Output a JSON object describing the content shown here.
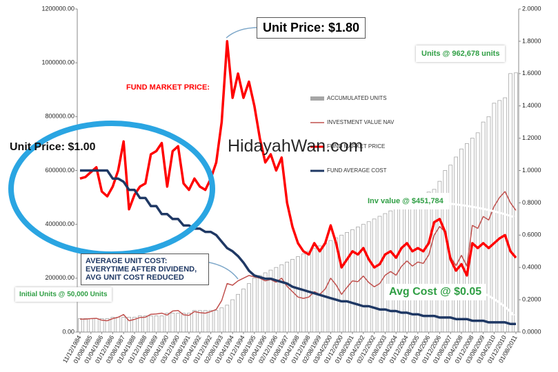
{
  "chart_data": {
    "type": "combo",
    "categories": [
      "11/12/1984",
      null,
      "01/08/1985",
      null,
      "01/04/1986",
      null,
      "01/12/1986",
      null,
      "03/08/1987",
      null,
      "01/04/1988",
      null,
      "01/12/1988",
      null,
      "01/08/1989",
      null,
      "02/04/1990",
      null,
      "03/12/1990",
      null,
      "01/08/1991",
      null,
      "01/04/1992",
      null,
      "01/12/1992",
      null,
      "02/08/1993",
      null,
      "01/04/1994",
      null,
      "01/12/1994",
      null,
      "01/08/1995",
      null,
      "01/04/1996",
      null,
      "02/12/1996",
      null,
      "01/08/1997",
      null,
      "01/04/1998",
      null,
      "01/12/1998",
      null,
      "02/08/1999",
      null,
      "03/04/2000",
      null,
      "01/12/2000",
      null,
      "01/08/2001",
      null,
      "01/04/2002",
      null,
      "02/12/2002",
      null,
      "01/08/2003",
      null,
      "01/04/2004",
      null,
      "01/12/2004",
      null,
      "01/08/2005",
      null,
      "01/04/2006",
      null,
      "01/12/2006",
      null,
      "01/08/2007",
      null,
      "01/04/2008",
      null,
      "01/12/2008",
      null,
      "03/08/2009",
      null,
      "01/04/2010",
      null,
      "01/12/2010",
      null,
      "01/08/2011"
    ],
    "series": [
      {
        "name": "ACCUMULATED UNITS",
        "type": "bar",
        "axis": "y",
        "color": "#a6a6a6",
        "values": [
          50000,
          50000,
          50000,
          50000,
          50000,
          50000,
          55000,
          55000,
          55000,
          55000,
          55000,
          60000,
          60000,
          60000,
          60000,
          60000,
          70000,
          70000,
          70000,
          70000,
          70000,
          80000,
          80000,
          80000,
          80000,
          80000,
          90000,
          100000,
          120000,
          140000,
          160000,
          180000,
          200000,
          210000,
          220000,
          230000,
          240000,
          250000,
          260000,
          270000,
          280000,
          290000,
          300000,
          310000,
          320000,
          330000,
          340000,
          350000,
          360000,
          370000,
          380000,
          390000,
          400000,
          410000,
          420000,
          430000,
          440000,
          450000,
          460000,
          470000,
          480000,
          490000,
          500000,
          510000,
          520000,
          530000,
          560000,
          600000,
          620000,
          650000,
          680000,
          700000,
          720000,
          740000,
          780000,
          800000,
          850000,
          860000,
          870000,
          960000,
          962678
        ]
      },
      {
        "name": "INVESTMENT VALUE NAV",
        "type": "line",
        "axis": "y",
        "color": "#c0504d",
        "values": [
          48000,
          48000,
          50000,
          51000,
          44000,
          42000,
          50000,
          55000,
          65000,
          42000,
          47000,
          54000,
          55000,
          66000,
          67000,
          70000,
          63000,
          78000,
          80000,
          64000,
          62000,
          76000,
          72000,
          70000,
          76000,
          84000,
          117000,
          180000,
          174000,
          190000,
          200000,
          210000,
          205000,
          200000,
          190000,
          195000,
          185000,
          200000,
          170000,
          150000,
          130000,
          125000,
          130000,
          150000,
          140000,
          160000,
          200000,
          175000,
          140000,
          166000,
          190000,
          187000,
          208000,
          184000,
          168000,
          180000,
          211000,
          225000,
          211000,
          244000,
          264000,
          245000,
          260000,
          255000,
          286000,
          360000,
          392000,
          372000,
          279000,
          247000,
          285000,
          245000,
          396000,
          385000,
          429000,
          416000,
          467000,
          500000,
          522000,
          480000,
          451784
        ]
      },
      {
        "name": "FUND MARKET PRICE",
        "type": "line",
        "axis": "y2",
        "color": "#ff0000",
        "values": [
          0.95,
          0.96,
          0.99,
          1.02,
          0.87,
          0.84,
          0.9,
          1.0,
          1.18,
          0.76,
          0.85,
          0.9,
          0.92,
          1.1,
          1.12,
          1.17,
          0.9,
          1.12,
          1.15,
          0.92,
          0.88,
          0.95,
          0.9,
          0.88,
          0.95,
          1.05,
          1.3,
          1.8,
          1.45,
          1.6,
          1.45,
          1.55,
          1.4,
          1.2,
          1.05,
          1.1,
          1.0,
          1.08,
          0.8,
          0.65,
          0.55,
          0.5,
          0.48,
          0.55,
          0.5,
          0.55,
          0.66,
          0.55,
          0.4,
          0.45,
          0.5,
          0.48,
          0.52,
          0.45,
          0.4,
          0.42,
          0.48,
          0.5,
          0.46,
          0.52,
          0.55,
          0.5,
          0.52,
          0.5,
          0.55,
          0.68,
          0.7,
          0.62,
          0.45,
          0.38,
          0.42,
          0.35,
          0.55,
          0.52,
          0.55,
          0.52,
          0.55,
          0.58,
          0.6,
          0.5,
          0.46
        ]
      },
      {
        "name": "FUND AVERAGE COST",
        "type": "line",
        "axis": "y2",
        "color": "#1f3864",
        "values": [
          1.0,
          1.0,
          1.0,
          1.0,
          1.0,
          1.0,
          0.95,
          0.95,
          0.93,
          0.88,
          0.88,
          0.83,
          0.83,
          0.78,
          0.78,
          0.73,
          0.73,
          0.7,
          0.7,
          0.66,
          0.66,
          0.64,
          0.64,
          0.62,
          0.62,
          0.6,
          0.56,
          0.52,
          0.5,
          0.47,
          0.43,
          0.38,
          0.35,
          0.34,
          0.33,
          0.33,
          0.32,
          0.31,
          0.3,
          0.28,
          0.27,
          0.26,
          0.25,
          0.24,
          0.23,
          0.22,
          0.21,
          0.2,
          0.19,
          0.19,
          0.18,
          0.17,
          0.16,
          0.16,
          0.15,
          0.14,
          0.14,
          0.13,
          0.13,
          0.12,
          0.12,
          0.11,
          0.11,
          0.1,
          0.1,
          0.1,
          0.09,
          0.09,
          0.09,
          0.08,
          0.08,
          0.08,
          0.07,
          0.07,
          0.07,
          0.06,
          0.06,
          0.06,
          0.06,
          0.05,
          0.05
        ]
      }
    ],
    "ylim": [
      0,
      1200000
    ],
    "yticks": [
      {
        "value": 0,
        "label": "0.00"
      },
      {
        "value": 200000,
        "label": "200000.00"
      },
      {
        "value": 400000,
        "label": "400000.00"
      },
      {
        "value": 600000,
        "label": "600000.00"
      },
      {
        "value": 800000,
        "label": "800000.00"
      },
      {
        "value": 1000000,
        "label": "1000000.00"
      },
      {
        "value": 1200000,
        "label": "1200000.00"
      }
    ],
    "y2lim": [
      0,
      2
    ],
    "y2ticks": [
      {
        "value": 0,
        "label": "0.0000"
      },
      {
        "value": 0.2,
        "label": "0.2000"
      },
      {
        "value": 0.4,
        "label": "0.4000"
      },
      {
        "value": 0.6,
        "label": "0.6000"
      },
      {
        "value": 0.8,
        "label": "0.8000"
      },
      {
        "value": 1,
        "label": "1.0000"
      },
      {
        "value": 1.2,
        "label": "1.2000"
      },
      {
        "value": 1.4,
        "label": "1.4000"
      },
      {
        "value": 1.6,
        "label": "1.6000"
      },
      {
        "value": 1.8,
        "label": "1.8000"
      },
      {
        "value": 2,
        "label": "2.0000"
      }
    ],
    "annotations": [
      "Unit Price: $1.80",
      "Units @ 962,678 units",
      "FUND MARKET PRICE:",
      "Unit Price: $1.00",
      "HidayahWan.com",
      "Inv value @ $451,784",
      "AVERAGE UNIT COST: EVERYTIME AFTER DIVIDEND, AVG UNIT COST REDUCED",
      "Initial Units @ 50,000 Units",
      "Avg Cost @ $0.05"
    ]
  }
}
